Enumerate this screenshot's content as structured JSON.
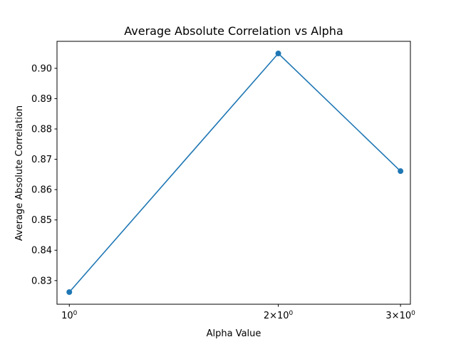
{
  "chart_data": {
    "type": "line",
    "title": "Average Absolute Correlation vs Alpha",
    "xlabel": "Alpha Value",
    "ylabel": "Average Absolute Correlation",
    "x_scale": "log",
    "x": [
      1,
      2,
      3
    ],
    "series": [
      {
        "values": [
          0.8262,
          0.9049,
          0.8661
        ],
        "color": "#1f77b4",
        "marker": "circle"
      }
    ],
    "xlim": [
      0.96,
      3.1
    ],
    "ylim": [
      0.8222,
      0.9089
    ],
    "x_ticks": [
      {
        "value": 1,
        "base": "10",
        "exp": "0"
      },
      {
        "value": 2,
        "mult": "2",
        "base": "10",
        "exp": "0"
      },
      {
        "value": 3,
        "mult": "3",
        "base": "10",
        "exp": "0"
      }
    ],
    "y_ticks": [
      {
        "value": 0.83,
        "label": "0.83"
      },
      {
        "value": 0.84,
        "label": "0.84"
      },
      {
        "value": 0.85,
        "label": "0.85"
      },
      {
        "value": 0.86,
        "label": "0.86"
      },
      {
        "value": 0.87,
        "label": "0.87"
      },
      {
        "value": 0.88,
        "label": "0.88"
      },
      {
        "value": 0.89,
        "label": "0.89"
      },
      {
        "value": 0.9,
        "label": "0.90"
      }
    ],
    "grid": false,
    "legend": "none"
  }
}
